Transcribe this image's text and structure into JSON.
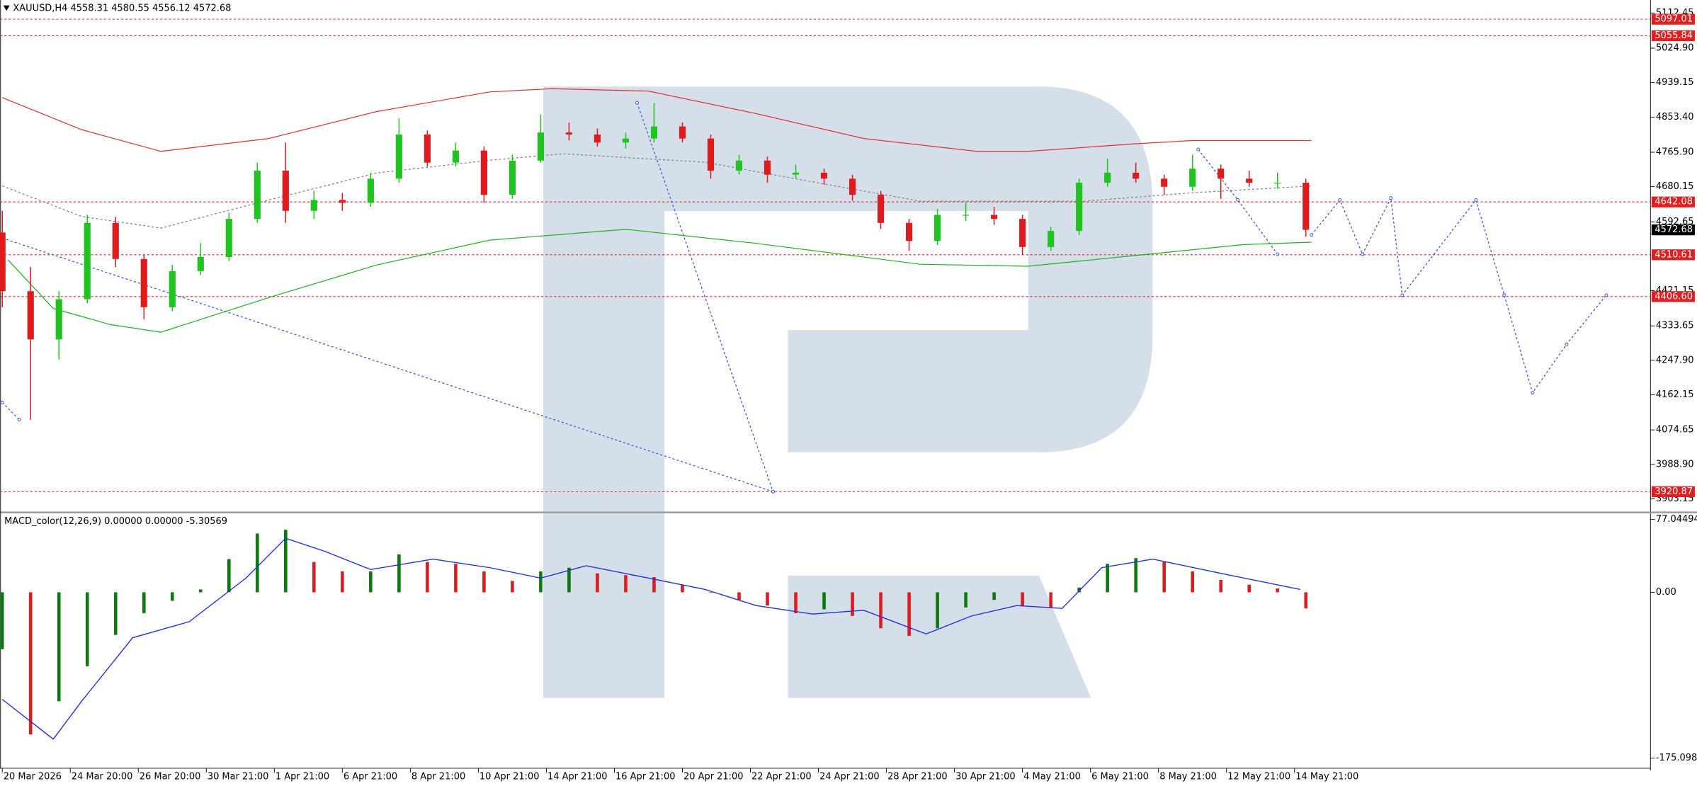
{
  "chart_data": [
    {
      "type": "candlestick",
      "title": "XAUUSD,H4  4558.31 4580.55 4556.12 4572.68",
      "x": [
        0,
        5,
        10,
        15,
        20,
        25,
        30,
        35,
        40,
        45,
        50,
        55,
        60,
        65,
        70,
        75,
        80,
        85,
        90,
        95,
        100,
        105,
        110,
        115,
        120,
        125,
        130,
        135,
        140,
        145,
        150,
        155,
        160,
        165,
        170,
        175,
        180,
        185,
        190,
        195,
        200,
        205,
        210,
        215,
        220,
        225,
        230
      ],
      "open": [
        4566,
        4420,
        4300,
        4400,
        4590,
        4500,
        4380,
        4470,
        4505,
        4600,
        4720,
        4620,
        4647,
        4640,
        4700,
        4810,
        4740,
        4770,
        4660,
        4745,
        4815,
        4810,
        4790,
        4800,
        4830,
        4800,
        4720,
        4745,
        4710,
        4715,
        4700,
        4660,
        4590,
        4545,
        4610,
        4610,
        4600,
        4530,
        4570,
        4690,
        4715,
        4700,
        4680,
        4725,
        4700,
        4690,
        4690
      ],
      "high": [
        4620,
        4480,
        4420,
        4610,
        4605,
        4510,
        4485,
        4540,
        4615,
        4740,
        4790,
        4670,
        4665,
        4715,
        4850,
        4820,
        4790,
        4780,
        4760,
        4860,
        4840,
        4825,
        4815,
        4889,
        4840,
        4810,
        4760,
        4755,
        4735,
        4725,
        4710,
        4670,
        4600,
        4625,
        4640,
        4630,
        4610,
        4580,
        4700,
        4750,
        4740,
        4710,
        4760,
        4735,
        4720,
        4715,
        4700
      ],
      "low": [
        4380,
        4100,
        4250,
        4390,
        4480,
        4350,
        4370,
        4460,
        4495,
        4590,
        4590,
        4600,
        4620,
        4630,
        4690,
        4730,
        4730,
        4640,
        4650,
        4740,
        4795,
        4780,
        4775,
        4790,
        4790,
        4700,
        4710,
        4690,
        4700,
        4685,
        4645,
        4575,
        4520,
        4535,
        4595,
        4585,
        4510,
        4520,
        4560,
        4680,
        4690,
        4660,
        4670,
        4650,
        4680,
        4675,
        4556.12
      ],
      "close": [
        4420,
        4300,
        4400,
        4590,
        4500,
        4380,
        4470,
        4505,
        4600,
        4720,
        4620,
        4647,
        4640,
        4700,
        4810,
        4740,
        4770,
        4660,
        4745,
        4815,
        4810,
        4790,
        4800,
        4830,
        4800,
        4720,
        4745,
        4710,
        4715,
        4700,
        4660,
        4590,
        4545,
        4610,
        4610,
        4600,
        4530,
        4570,
        4690,
        4715,
        4700,
        4680,
        4725,
        4700,
        4690,
        4690,
        4572.68
      ],
      "up_color": "#1fc41f",
      "down_color": "#e01b1b",
      "xlim": [
        -0.4,
        290.8
      ],
      "xticks": [
        {
          "value": 0,
          "label": "20 Mar 2026"
        },
        {
          "value": 12,
          "label": "24 Mar 20:00"
        },
        {
          "value": 24,
          "label": "26 Mar 20:00"
        },
        {
          "value": 36,
          "label": "30 Mar 21:00"
        },
        {
          "value": 48,
          "label": "1 Apr 21:00"
        },
        {
          "value": 60,
          "label": "6 Apr 21:00"
        },
        {
          "value": 72,
          "label": "8 Apr 21:00"
        },
        {
          "value": 84,
          "label": "10 Apr 21:00"
        },
        {
          "value": 96,
          "label": "14 Apr 21:00"
        },
        {
          "value": 108,
          "label": "16 Apr 21:00"
        },
        {
          "value": 120,
          "label": "20 Apr 21:00"
        },
        {
          "value": 132,
          "label": "22 Apr 21:00"
        },
        {
          "value": 144,
          "label": "24 Apr 21:00"
        },
        {
          "value": 156,
          "label": "28 Apr 21:00"
        },
        {
          "value": 168,
          "label": "30 Apr 21:00"
        },
        {
          "value": 180,
          "label": "4 May 21:00"
        },
        {
          "value": 192,
          "label": "6 May 21:00"
        },
        {
          "value": 204,
          "label": "8 May 21:00"
        },
        {
          "value": 216,
          "label": "12 May 21:00"
        },
        {
          "value": 228,
          "label": "14 May 21:00"
        }
      ],
      "ylim": [
        3873.5,
        5144.8
      ],
      "yticks": [
        5112.45,
        {
          "value": 5024.9,
          "label": "5024.90"
        },
        4939.15,
        {
          "value": 4853.4,
          "label": "4853.40"
        },
        {
          "value": 4765.9,
          "label": "4765.90"
        },
        4680.15,
        4592.65,
        4421.15,
        4333.65,
        {
          "value": 4247.9,
          "label": "4247.90"
        },
        4162.15,
        4074.65,
        {
          "value": 3988.9,
          "label": "3988.90"
        },
        3903.15
      ],
      "lines": [
        {
          "x": [
            0,
            14,
            28,
            47,
            66,
            86,
            97,
            114,
            133,
            152,
            172,
            181,
            200,
            210,
            231
          ],
          "values": [
            4902,
            4822,
            4768,
            4800,
            4867,
            4916,
            4924,
            4918,
            4862,
            4800,
            4768,
            4768,
            4787,
            4795,
            4795
          ],
          "color": "#e03030",
          "dash": false,
          "markers": false
        },
        {
          "x": [
            1,
            9,
            19,
            28,
            47,
            66,
            86,
            110,
            133,
            162,
            181,
            200,
            219,
            231
          ],
          "values": [
            4498,
            4377,
            4337,
            4318,
            4404,
            4485,
            4547,
            4574,
            4539,
            4487,
            4482,
            4509,
            4536,
            4542
          ],
          "color": "#22b022",
          "dash": false,
          "markers": false
        },
        {
          "x": [
            0,
            14,
            28,
            47,
            66,
            86,
            99,
            124,
            143,
            162,
            191,
            210,
            231
          ],
          "values": [
            4682,
            4606,
            4577,
            4647,
            4714,
            4746,
            4762,
            4741,
            4692,
            4644,
            4644,
            4665,
            4682
          ],
          "color": "#808080",
          "dash": true,
          "markers": false
        },
        {
          "x": [
            0,
            136
          ],
          "values": [
            4552,
            3921
          ],
          "color": "#3050e0",
          "dash": true,
          "markers": true
        },
        {
          "x": [
            112,
            136
          ],
          "values": [
            4889,
            3921
          ],
          "color": "#3050e0",
          "dash": true,
          "markers": true
        },
        {
          "x": [
            0,
            3
          ],
          "values": [
            4143,
            4100
          ],
          "color": "#3050e0",
          "dash": true,
          "markers": true
        },
        {
          "x": [
            211,
            218,
            225
          ],
          "values": [
            4773,
            4647,
            4512
          ],
          "color": "#3050e0",
          "dash": true,
          "markers": true
        },
        {
          "x": [
            231,
            236,
            240,
            245,
            247,
            260,
            265,
            270,
            276,
            283
          ],
          "values": [
            4560,
            4647,
            4512,
            4652,
            4410,
            4647,
            4410,
            4167,
            4288,
            4410
          ],
          "color": "#3050e0",
          "dash": true,
          "markers": true
        }
      ],
      "levels": [
        5097.01,
        5055.84,
        4642.08,
        4510.61,
        {
          "value": 4406.6,
          "label": "4406.60"
        },
        3920.87
      ],
      "level_color": "#e02020",
      "last_price": 4572.68
    },
    {
      "type": "bar",
      "title": "MACD_color(12,26,9) 0.00000 0.00000 -5.30569",
      "x": [
        0,
        5,
        10,
        15,
        20,
        25,
        30,
        35,
        40,
        45,
        50,
        55,
        60,
        65,
        70,
        75,
        80,
        85,
        90,
        95,
        100,
        105,
        110,
        115,
        120,
        125,
        130,
        135,
        140,
        145,
        150,
        155,
        160,
        165,
        170,
        175,
        180,
        185,
        190,
        195,
        200,
        205,
        210,
        215,
        220,
        225,
        230
      ],
      "values": [
        -60,
        -150,
        -115,
        -78,
        -45,
        -22,
        -9,
        3,
        35,
        62,
        66,
        32,
        22,
        22,
        40,
        32,
        30,
        22,
        12,
        22,
        26,
        20,
        18,
        16,
        8,
        0,
        -8,
        -14,
        -22,
        -18,
        -25,
        -38,
        -46,
        -38,
        -16,
        -8,
        -15,
        -16,
        5,
        30,
        36,
        32,
        22,
        13,
        8,
        4,
        -17
      ],
      "up_color": "#0a7a0a",
      "down_color": "#e01b1b",
      "signal": {
        "x": [
          0,
          9,
          14,
          23,
          33,
          43,
          50,
          57,
          65,
          76,
          86,
          95,
          103,
          114,
          124,
          133,
          143,
          152,
          163,
          171,
          179,
          187,
          194,
          203,
          215,
          229
        ],
        "values": [
          -113,
          -155,
          -115,
          -48,
          -31,
          15,
          57,
          43,
          24,
          35,
          26,
          15,
          28,
          15,
          3,
          -14,
          -23,
          -19,
          -44,
          -25,
          -14,
          -17,
          26,
          35,
          20,
          3
        ],
        "color": "#2030e0"
      },
      "xlim": [
        -0.4,
        290.8
      ],
      "ylim": [
        -185.7,
        81.5
      ],
      "yticks": [
        77.04494,
        {
          "value": 0,
          "label": "0.00"
        },
        -175.09847
      ]
    }
  ]
}
